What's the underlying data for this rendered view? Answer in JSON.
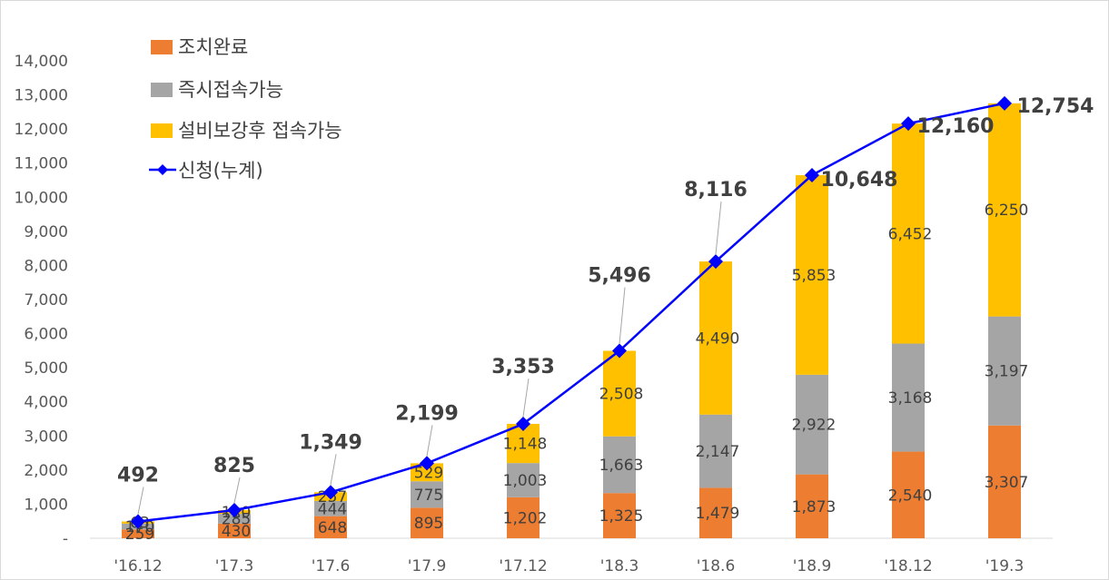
{
  "chart_data": {
    "type": "bar",
    "stacked": true,
    "categories": [
      "'16.12",
      "'17.3",
      "'17.6",
      "'17.9",
      "'17.12",
      "'18.3",
      "'18.6",
      "'18.9",
      "'18.12",
      "'19.3"
    ],
    "series": [
      {
        "name": "조치완료",
        "color": "#ED7D31",
        "values": [
          259,
          430,
          648,
          895,
          1202,
          1325,
          1479,
          1873,
          2540,
          3307
        ],
        "labels": [
          "259",
          "430",
          "648",
          "895",
          "1,202",
          "1,325",
          "1,479",
          "1,873",
          "2,540",
          "3,307"
        ]
      },
      {
        "name": "즉시접속가능",
        "color": "#A5A5A5",
        "values": [
          170,
          285,
          444,
          775,
          1003,
          1663,
          2147,
          2922,
          3168,
          3197
        ],
        "labels": [
          "170",
          "285",
          "444",
          "775",
          "1,003",
          "1,663",
          "2,147",
          "2,922",
          "3,168",
          "3,197"
        ]
      },
      {
        "name": "설비보강후 접속가능",
        "color": "#FFC000",
        "values": [
          63,
          110,
          257,
          529,
          1148,
          2508,
          4490,
          5853,
          6452,
          6250
        ],
        "labels": [
          "63",
          "110",
          "257",
          "529",
          "1,148",
          "2,508",
          "4,490",
          "5,853",
          "6,452",
          "6,250"
        ]
      }
    ],
    "line": {
      "name": "신청(누계)",
      "color": "#0000FF",
      "values": [
        492,
        825,
        1349,
        2199,
        3353,
        5496,
        8116,
        10648,
        12160,
        12754
      ],
      "labels": [
        "492",
        "825",
        "1,349",
        "2,199",
        "3,353",
        "5,496",
        "8,116",
        "10,648",
        "12,160",
        "12,754"
      ]
    },
    "ylim": [
      0,
      14000
    ],
    "yticks": [
      0,
      1000,
      2000,
      3000,
      4000,
      5000,
      6000,
      7000,
      8000,
      9000,
      10000,
      11000,
      12000,
      13000,
      14000
    ],
    "ytick_labels": [
      "-",
      "1,000",
      "2,000",
      "3,000",
      "4,000",
      "5,000",
      "6,000",
      "7,000",
      "8,000",
      "9,000",
      "10,000",
      "11,000",
      "12,000",
      "13,000",
      "14,000"
    ],
    "grid": false,
    "legend_position": "top-left",
    "legend": [
      "조치완료",
      "즉시접속가능",
      "설비보강후 접속가능",
      "신청(누계)"
    ]
  }
}
